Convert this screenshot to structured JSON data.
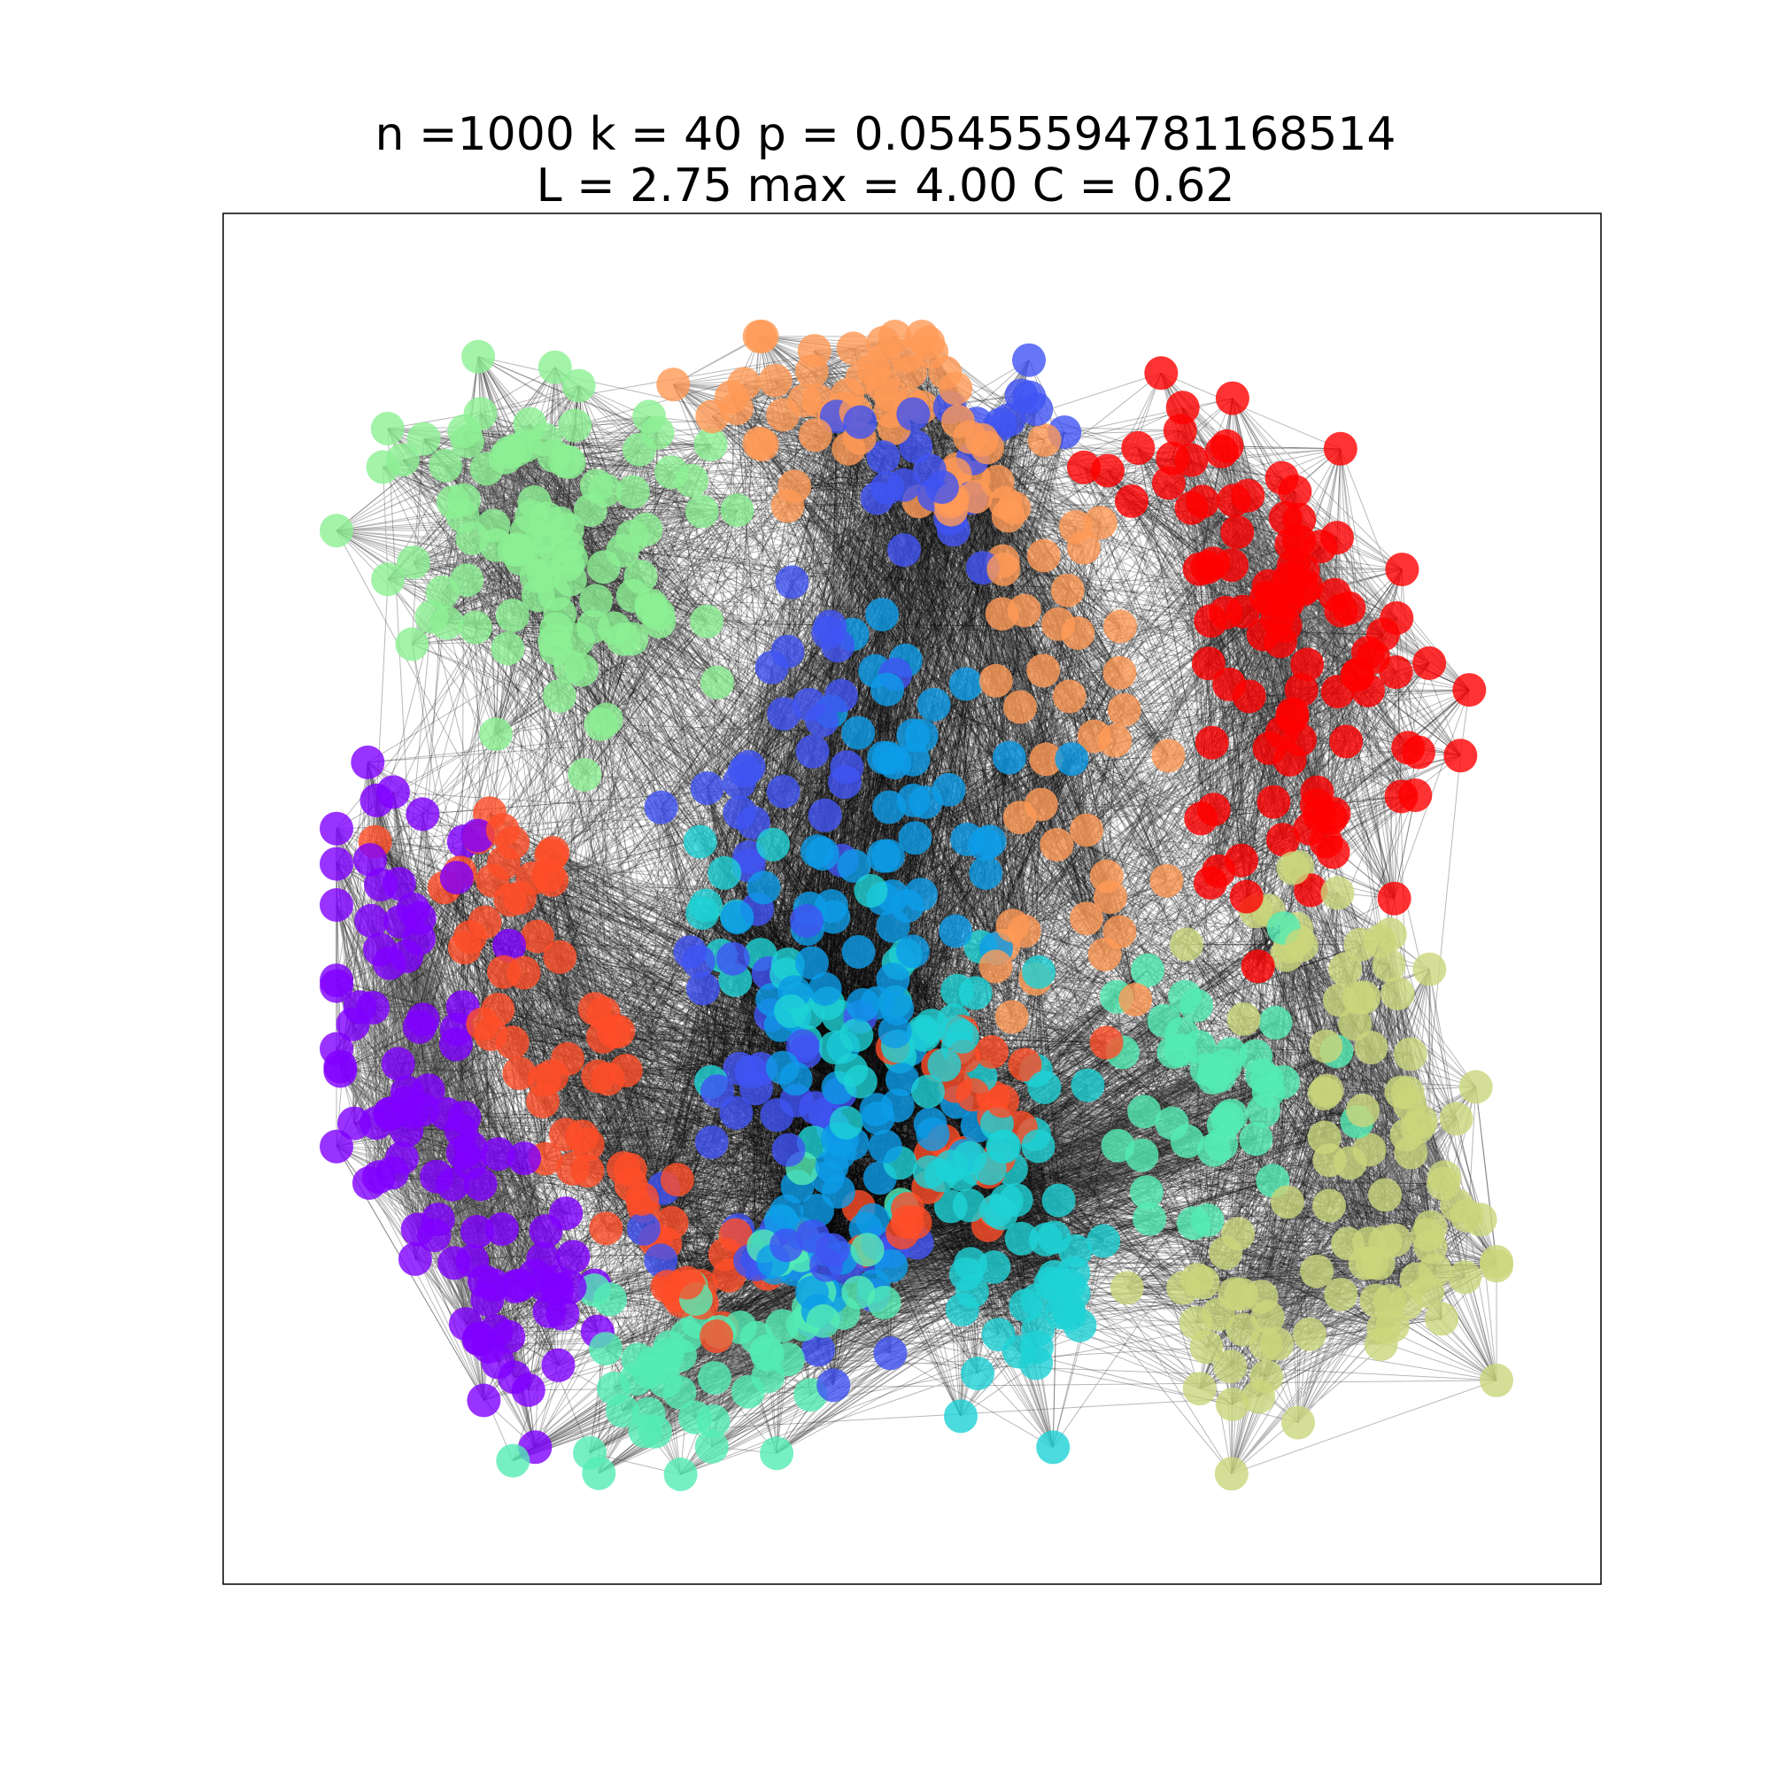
{
  "figure": {
    "title_line_1": "n =1000 k = 40 p = 0.05455594781168514",
    "title_line_2": "L = 2.75 max = 4.00 C = 0.62"
  },
  "graph": {
    "type": "network",
    "nodes": 1000,
    "k": 40,
    "p": 0.05455594781168514,
    "average_path_length": 2.75,
    "max_path_length": 4.0,
    "clustering": 0.62,
    "edge_color": "#000000",
    "communities": [
      {
        "name": "violet",
        "color": "#7f00ff"
      },
      {
        "name": "blue",
        "color": "#4054f4"
      },
      {
        "name": "sky-blue",
        "color": "#0c9ce8"
      },
      {
        "name": "cyan",
        "color": "#1ed2d6"
      },
      {
        "name": "aquamarine",
        "color": "#54ecb4"
      },
      {
        "name": "light-green",
        "color": "#8cf094"
      },
      {
        "name": "khaki",
        "color": "#cad67c"
      },
      {
        "name": "orange",
        "color": "#ff9a56"
      },
      {
        "name": "red-orange",
        "color": "#ff4e28"
      },
      {
        "name": "red",
        "color": "#ff0000"
      }
    ]
  }
}
